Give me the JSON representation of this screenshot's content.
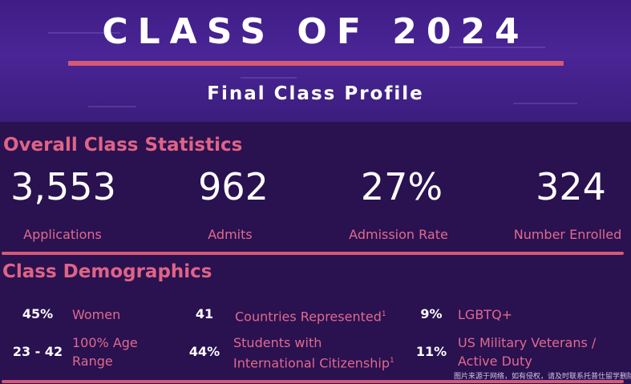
{
  "header": {
    "title": "CLASS OF 2024",
    "subtitle": "Final Class Profile"
  },
  "overall": {
    "heading": "Overall Class Statistics",
    "stats": [
      {
        "value": "3,553",
        "label": "Applications"
      },
      {
        "value": "962",
        "label": "Admits"
      },
      {
        "value": "27%",
        "label": "Admission Rate"
      },
      {
        "value": "324",
        "label": "Number Enrolled"
      }
    ]
  },
  "demographics": {
    "heading": "Class Demographics",
    "items": [
      {
        "value": "45%",
        "label": "Women"
      },
      {
        "value": "41",
        "label": "Countries Represented",
        "note": "1"
      },
      {
        "value": "9%",
        "label": "LGBTQ+"
      },
      {
        "value": "23 - 42",
        "label_lines": [
          "100% Age",
          "Range"
        ]
      },
      {
        "value": "44%",
        "label_lines": [
          "Students with",
          "International Citizenship"
        ],
        "note": "1"
      },
      {
        "value": "11%",
        "label_lines": [
          "US Military Veterans /",
          "Active Duty"
        ]
      }
    ]
  },
  "watermark": "图片来源于网络，如有侵权，请及时联系托普仕留学删除",
  "colors": {
    "accent": "#df6486",
    "background": "#2a1150",
    "hero": "#4a2596"
  }
}
